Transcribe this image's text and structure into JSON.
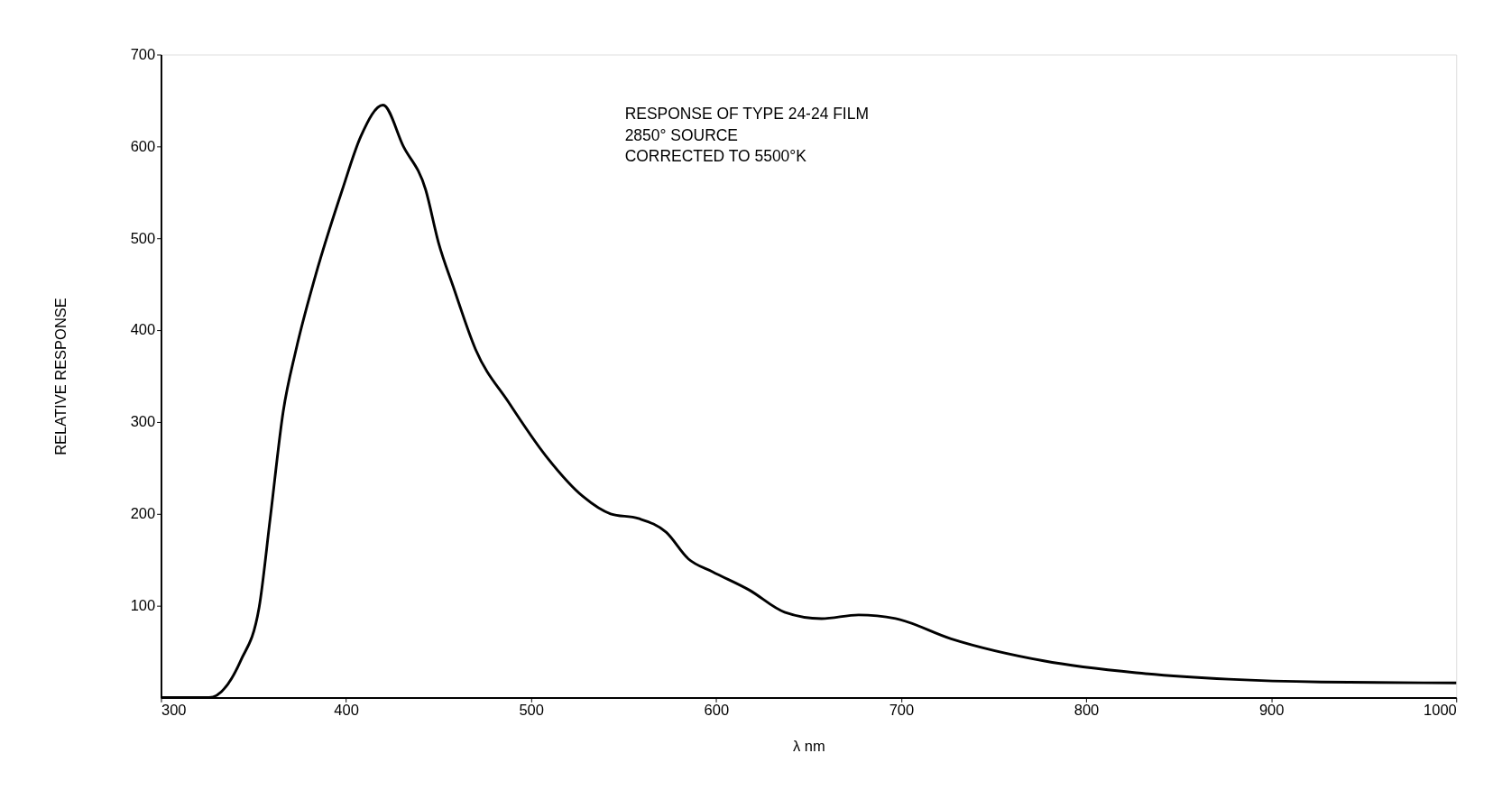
{
  "chart_data": {
    "type": "line",
    "xlabel": "λ nm",
    "ylabel": "RELATIVE RESPONSE",
    "annotations": [
      "RESPONSE OF TYPE 24-24 FILM",
      "2850° SOURCE",
      "CORRECTED TO 5500°K"
    ],
    "x": [
      300,
      326,
      343,
      353,
      359,
      366,
      373,
      383,
      398,
      408,
      420,
      431,
      443,
      450,
      458,
      470,
      488,
      508,
      528,
      543,
      558,
      573,
      585,
      598,
      618,
      637,
      657,
      677,
      697,
      727,
      777,
      827,
      877,
      927,
      1000
    ],
    "series": [
      {
        "color": "#000000",
        "values": [
          0,
          0,
          40,
          98,
          195,
          311,
          379,
          456,
          553,
          611,
          645,
          600,
          553,
          495,
          447,
          379,
          321,
          263,
          219,
          200,
          195,
          180,
          151,
          137,
          117,
          93,
          86,
          90,
          86,
          64,
          40,
          27,
          20,
          17,
          16
        ]
      }
    ],
    "xlim": [
      300,
      1000
    ],
    "xticks": [
      300,
      400,
      500,
      600,
      700,
      800,
      900,
      1000
    ],
    "ylim": [
      0,
      700
    ],
    "yticks": [
      100,
      200,
      300,
      400,
      500,
      600,
      700
    ],
    "grid": false,
    "marker": "none",
    "line_style": "solid"
  }
}
